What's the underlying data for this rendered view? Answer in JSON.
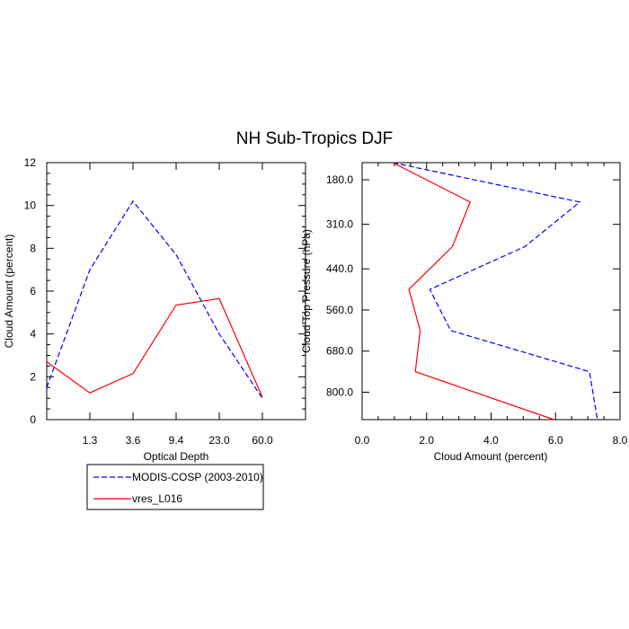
{
  "title": "NH Sub-Tropics DJF",
  "legend": {
    "position": "below-left",
    "entries": [
      {
        "label": "MODIS-COSP (2003-2010)",
        "color": "#0000ff",
        "dash": "dashed"
      },
      {
        "label": "vres_L016",
        "color": "#ff0000",
        "dash": "solid"
      }
    ]
  },
  "chart_data": [
    {
      "type": "line",
      "xlabel": "Optical Depth",
      "ylabel": "Cloud Amount (percent)",
      "ylim": [
        0,
        12
      ],
      "x_positions": [
        0,
        1,
        2,
        3,
        4,
        5,
        6
      ],
      "xlim": [
        0,
        6
      ],
      "x_tick_labels": [
        "1.3",
        "3.6",
        "9.4",
        "23.0",
        "60.0"
      ],
      "y_ticks": [
        0,
        2,
        4,
        6,
        8,
        10,
        12
      ],
      "series": [
        {
          "name": "MODIS-COSP (2003-2010)",
          "color": "#0000ff",
          "dash": "dashed",
          "values": [
            1.5,
            7.0,
            10.2,
            7.7,
            4.0,
            1.0
          ]
        },
        {
          "name": "vres_L016",
          "color": "#ff0000",
          "dash": "solid",
          "values": [
            2.7,
            1.25,
            2.15,
            5.35,
            5.65,
            1.05
          ]
        }
      ]
    },
    {
      "type": "line",
      "xlabel": "Cloud Amount (percent)",
      "ylabel": "Cloud Top Pressure (hPa)",
      "xlim": [
        0,
        8
      ],
      "x_ticks": [
        0,
        2,
        4,
        6,
        8
      ],
      "x_tick_labels": [
        "0.0",
        "2.0",
        "4.0",
        "6.0",
        "8.0"
      ],
      "ylim": [
        130,
        880
      ],
      "y_inverted": true,
      "y_ticks": [
        180,
        310,
        440,
        560,
        680,
        800
      ],
      "y_tick_labels": [
        "180.0",
        "310.0",
        "440.0",
        "560.0",
        "680.0",
        "800.0"
      ],
      "pressure_levels": [
        130,
        245,
        375,
        500,
        620,
        740,
        880
      ],
      "series": [
        {
          "name": "MODIS-COSP (2003-2010)",
          "color": "#0000ff",
          "dash": "dashed",
          "values": [
            0.95,
            6.75,
            5.05,
            2.1,
            2.75,
            7.05,
            7.3
          ]
        },
        {
          "name": "vres_L016",
          "color": "#ff0000",
          "dash": "solid",
          "values": [
            0.95,
            3.35,
            2.8,
            1.45,
            1.8,
            1.65,
            5.95
          ]
        }
      ]
    }
  ]
}
